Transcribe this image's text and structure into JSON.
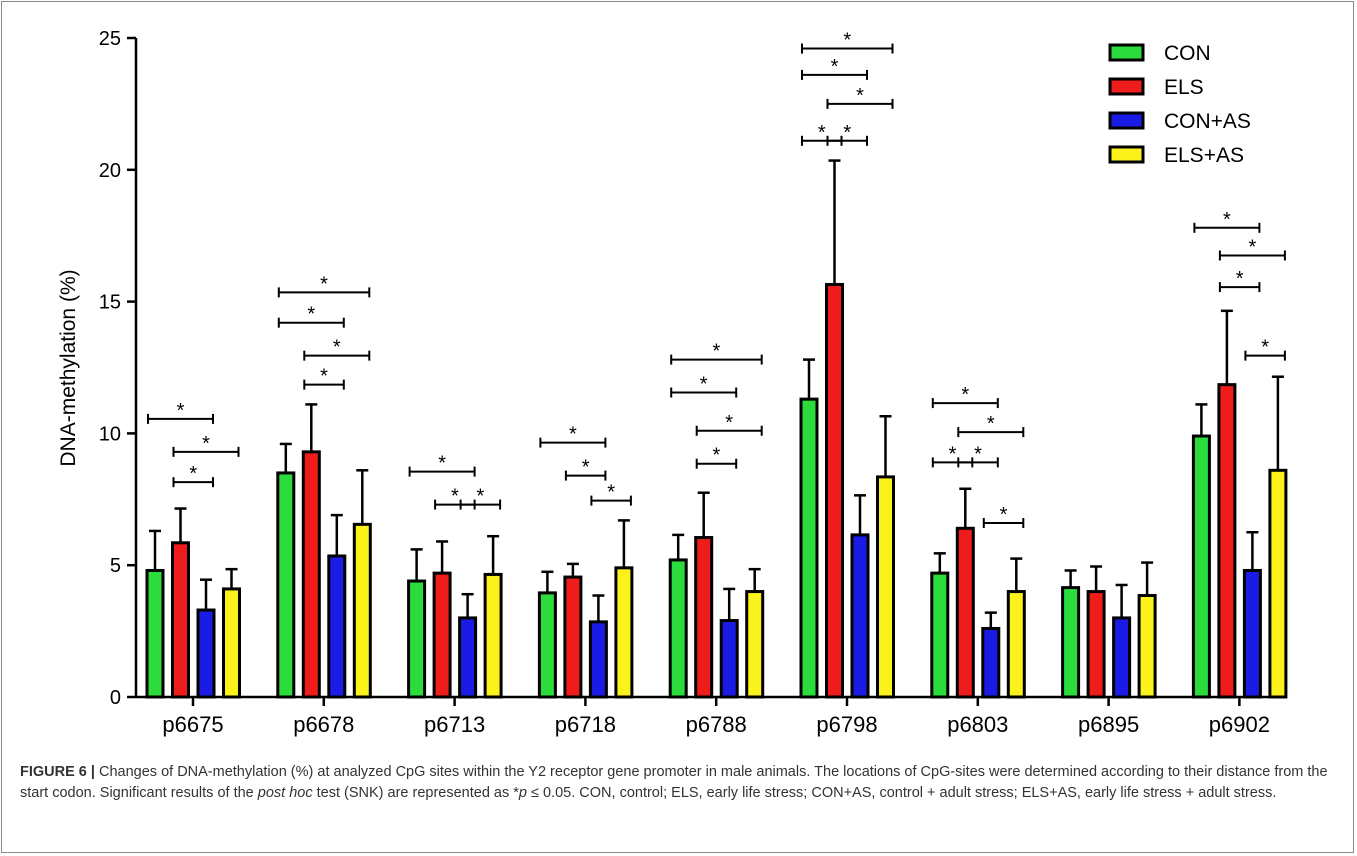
{
  "chart_data": {
    "type": "bar",
    "ylabel": "DNA-methylation (%)",
    "xlabel": "",
    "ylim": [
      0,
      25
    ],
    "yticks": [
      0,
      5,
      10,
      15,
      20,
      25
    ],
    "categories": [
      "p6675",
      "p6678",
      "p6713",
      "p6718",
      "p6788",
      "p6798",
      "p6803",
      "p6895",
      "p6902"
    ],
    "series": [
      {
        "name": "CON",
        "color": "#2bdc3c",
        "values": [
          4.8,
          8.5,
          4.4,
          3.95,
          5.2,
          11.3,
          4.7,
          4.15,
          9.9
        ],
        "errors": [
          1.5,
          1.1,
          1.2,
          0.8,
          0.95,
          1.5,
          0.75,
          0.65,
          1.2
        ]
      },
      {
        "name": "ELS",
        "color": "#ef1c1c",
        "values": [
          5.85,
          9.3,
          4.7,
          4.55,
          6.05,
          15.65,
          6.4,
          4.0,
          11.85
        ],
        "errors": [
          1.3,
          1.8,
          1.2,
          0.5,
          1.7,
          4.7,
          1.5,
          0.95,
          2.8
        ]
      },
      {
        "name": "CON+AS",
        "color": "#1b1be6",
        "values": [
          3.3,
          5.35,
          3.0,
          2.85,
          2.9,
          6.15,
          2.6,
          3.0,
          4.8
        ],
        "errors": [
          1.15,
          1.55,
          0.9,
          1.0,
          1.2,
          1.5,
          0.6,
          1.25,
          1.45
        ]
      },
      {
        "name": "ELS+AS",
        "color": "#fbf21c",
        "values": [
          4.1,
          6.55,
          4.65,
          4.9,
          4.0,
          8.35,
          4.0,
          3.85,
          8.6
        ],
        "errors": [
          0.75,
          2.05,
          1.45,
          1.8,
          0.85,
          2.3,
          1.25,
          1.25,
          3.55
        ]
      }
    ],
    "legend_position": "top-right",
    "grid": false,
    "significance_label": "*",
    "significance_brackets": [
      {
        "category": 0,
        "from": 0,
        "to": 2,
        "y": 10.55
      },
      {
        "category": 0,
        "from": 1,
        "to": 3,
        "y": 9.3
      },
      {
        "category": 0,
        "from": 1,
        "to": 2,
        "y": 8.15
      },
      {
        "category": 1,
        "from": 0,
        "to": 3,
        "y": 15.35
      },
      {
        "category": 1,
        "from": 0,
        "to": 2,
        "y": 14.2
      },
      {
        "category": 1,
        "from": 1,
        "to": 3,
        "y": 12.95
      },
      {
        "category": 1,
        "from": 1,
        "to": 2,
        "y": 11.85
      },
      {
        "category": 2,
        "from": 0,
        "to": 2,
        "y": 8.55
      },
      {
        "category": 2,
        "from": 1,
        "to": 2,
        "y": 7.3
      },
      {
        "category": 2,
        "from": 2,
        "to": 3,
        "y": 7.3
      },
      {
        "category": 3,
        "from": 0,
        "to": 2,
        "y": 9.65
      },
      {
        "category": 3,
        "from": 1,
        "to": 2,
        "y": 8.4
      },
      {
        "category": 3,
        "from": 2,
        "to": 3,
        "y": 7.45
      },
      {
        "category": 4,
        "from": 0,
        "to": 3,
        "y": 12.8
      },
      {
        "category": 4,
        "from": 0,
        "to": 2,
        "y": 11.55
      },
      {
        "category": 4,
        "from": 1,
        "to": 3,
        "y": 10.1
      },
      {
        "category": 4,
        "from": 1,
        "to": 2,
        "y": 8.85
      },
      {
        "category": 5,
        "from": 0,
        "to": 3,
        "y": 24.6
      },
      {
        "category": 5,
        "from": 0,
        "to": 2,
        "y": 23.6
      },
      {
        "category": 5,
        "from": 1,
        "to": 3,
        "y": 22.5
      },
      {
        "category": 5,
        "from": 0,
        "to": 1,
        "y": 21.1
      },
      {
        "category": 5,
        "from": 1,
        "to": 2,
        "y": 21.1
      },
      {
        "category": 6,
        "from": 0,
        "to": 2,
        "y": 11.15
      },
      {
        "category": 6,
        "from": 1,
        "to": 3,
        "y": 10.05
      },
      {
        "category": 6,
        "from": 0,
        "to": 1,
        "y": 8.9
      },
      {
        "category": 6,
        "from": 1,
        "to": 2,
        "y": 8.9
      },
      {
        "category": 6,
        "from": 2,
        "to": 3,
        "y": 6.6
      },
      {
        "category": 8,
        "from": 0,
        "to": 2,
        "y": 17.8
      },
      {
        "category": 8,
        "from": 1,
        "to": 3,
        "y": 16.75
      },
      {
        "category": 8,
        "from": 1,
        "to": 2,
        "y": 15.55
      },
      {
        "category": 8,
        "from": 2,
        "to": 3,
        "y": 12.95
      }
    ]
  },
  "caption": {
    "label": "FIGURE 6 |",
    "part1": " Changes of DNA-methylation (%) at analyzed CpG sites within the Y2 receptor gene promoter in male animals. The locations of CpG-sites were determined according to their distance from the start codon. Significant results of the ",
    "italic_term": "post hoc",
    "part2": " test (SNK) are represented as *",
    "p_symbol": "p",
    "part3": " ≤ 0.05. CON, control; ELS, early life stress; CON+AS, control + adult stress; ELS+AS, early life stress + adult stress."
  }
}
